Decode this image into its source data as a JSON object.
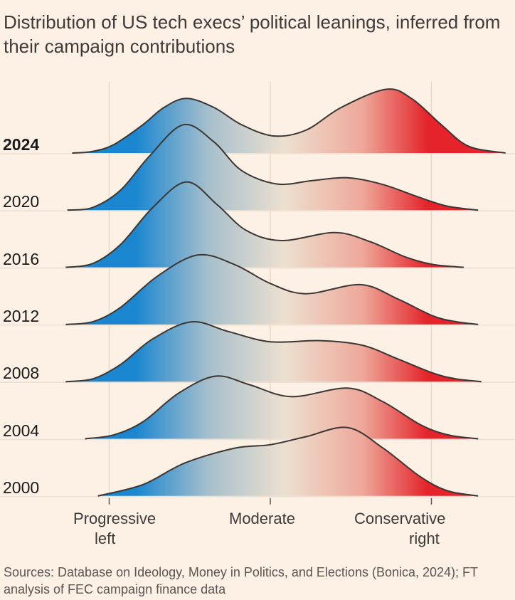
{
  "title": "Distribution of US tech execs’ political leanings, inferred from their campaign contributions",
  "sources": "Sources: Database on Ideology, Money in Politics, and Elections (Bonica, 2024); FT analysis of FEC campaign finance data",
  "chart_data": {
    "type": "ridgeline",
    "title": "Distribution of US tech execs’ political leanings, inferred from their campaign contributions",
    "x_ticks": [
      {
        "value": -1,
        "label_line1": "Progressive",
        "label_line2": "left"
      },
      {
        "value": 0,
        "label_line1": "Moderate",
        "label_line2": ""
      },
      {
        "value": 1,
        "label_line1": "Conservative",
        "label_line2": "right"
      }
    ],
    "grid": true,
    "color_scale": [
      "#1a86d0",
      "#a9c0cc",
      "#ede0cf",
      "#eea89a",
      "#e4232a"
    ],
    "series": [
      {
        "name": "2024",
        "bold": true,
        "points": [
          [
            -1.23,
            0
          ],
          [
            -1.1,
            0.03
          ],
          [
            -0.97,
            0.15
          ],
          [
            -0.79,
            0.5
          ],
          [
            -0.66,
            0.8
          ],
          [
            -0.52,
            0.96
          ],
          [
            -0.35,
            0.8
          ],
          [
            -0.18,
            0.5
          ],
          [
            0.02,
            0.3
          ],
          [
            0.22,
            0.4
          ],
          [
            0.44,
            0.8
          ],
          [
            0.72,
            1.12
          ],
          [
            0.88,
            0.95
          ],
          [
            1.06,
            0.5
          ],
          [
            1.23,
            0.12
          ],
          [
            1.46,
            0
          ]
        ]
      },
      {
        "name": "2020",
        "bold": false,
        "points": [
          [
            -1.26,
            0
          ],
          [
            -1.1,
            0.05
          ],
          [
            -0.93,
            0.35
          ],
          [
            -0.75,
            0.95
          ],
          [
            -0.54,
            1.5
          ],
          [
            -0.35,
            1.2
          ],
          [
            -0.18,
            0.7
          ],
          [
            0.04,
            0.46
          ],
          [
            0.26,
            0.52
          ],
          [
            0.48,
            0.57
          ],
          [
            0.7,
            0.45
          ],
          [
            0.93,
            0.22
          ],
          [
            1.1,
            0.07
          ],
          [
            1.29,
            0
          ]
        ]
      },
      {
        "name": "2016",
        "bold": false,
        "points": [
          [
            -1.27,
            0
          ],
          [
            -1.1,
            0.07
          ],
          [
            -0.93,
            0.4
          ],
          [
            -0.73,
            1.05
          ],
          [
            -0.52,
            1.5
          ],
          [
            -0.33,
            1.1
          ],
          [
            -0.15,
            0.65
          ],
          [
            0.07,
            0.47
          ],
          [
            0.4,
            0.61
          ],
          [
            0.62,
            0.45
          ],
          [
            0.84,
            0.18
          ],
          [
            1.01,
            0.05
          ],
          [
            1.2,
            0
          ]
        ]
      },
      {
        "name": "2012",
        "bold": false,
        "points": [
          [
            -1.27,
            0
          ],
          [
            -1.1,
            0.05
          ],
          [
            -0.93,
            0.3
          ],
          [
            -0.7,
            0.85
          ],
          [
            -0.45,
            1.22
          ],
          [
            -0.22,
            1.05
          ],
          [
            0,
            0.72
          ],
          [
            0.22,
            0.54
          ],
          [
            0.56,
            0.7
          ],
          [
            0.79,
            0.45
          ],
          [
            1.01,
            0.15
          ],
          [
            1.15,
            0.05
          ],
          [
            1.29,
            0
          ]
        ]
      },
      {
        "name": "2008",
        "bold": false,
        "points": [
          [
            -1.27,
            0
          ],
          [
            -1.1,
            0.05
          ],
          [
            -0.93,
            0.3
          ],
          [
            -0.73,
            0.75
          ],
          [
            -0.49,
            1.05
          ],
          [
            -0.26,
            0.88
          ],
          [
            0,
            0.7
          ],
          [
            0.31,
            0.72
          ],
          [
            0.57,
            0.64
          ],
          [
            0.79,
            0.4
          ],
          [
            1.01,
            0.15
          ],
          [
            1.15,
            0.05
          ],
          [
            1.31,
            0
          ]
        ]
      },
      {
        "name": "2004",
        "bold": false,
        "points": [
          [
            -1.15,
            0
          ],
          [
            -0.97,
            0.07
          ],
          [
            -0.79,
            0.3
          ],
          [
            -0.57,
            0.8
          ],
          [
            -0.34,
            1.1
          ],
          [
            -0.13,
            0.95
          ],
          [
            0.13,
            0.74
          ],
          [
            0.48,
            0.89
          ],
          [
            0.7,
            0.65
          ],
          [
            0.93,
            0.25
          ],
          [
            1.1,
            0.07
          ],
          [
            1.29,
            0
          ]
        ]
      },
      {
        "name": "2000",
        "bold": false,
        "points": [
          [
            -1.07,
            0
          ],
          [
            -0.79,
            0.2
          ],
          [
            -0.53,
            0.58
          ],
          [
            -0.22,
            0.84
          ],
          [
            0,
            0.9
          ],
          [
            0.22,
            1.04
          ],
          [
            0.48,
            1.2
          ],
          [
            0.7,
            0.84
          ],
          [
            0.93,
            0.34
          ],
          [
            1.1,
            0.09
          ],
          [
            1.29,
            0
          ]
        ]
      }
    ]
  }
}
